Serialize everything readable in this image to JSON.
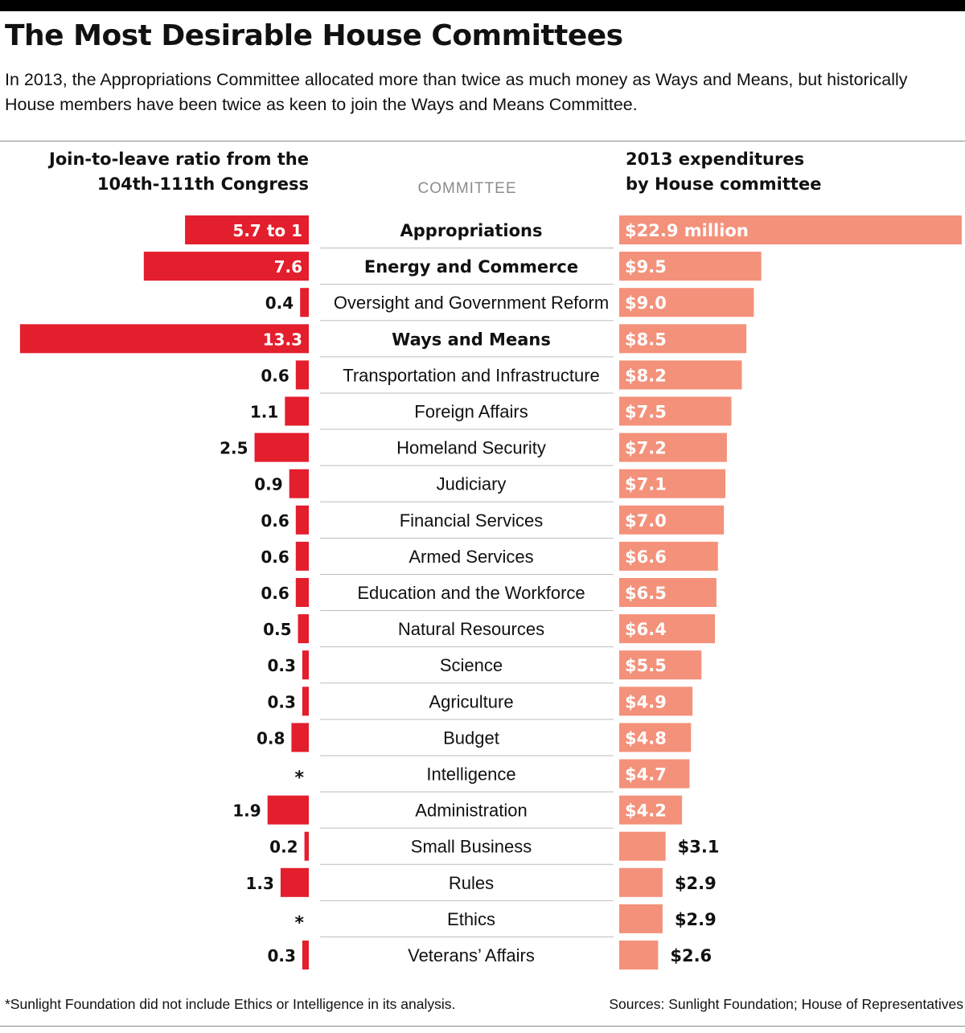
{
  "header": {
    "title": "The Most Desirable House Committees",
    "subtitle": "In 2013, the Appropriations Committee allocated more than twice as much money as Ways and Means, but historically House members have been twice as keen to join the Ways and Means Committee."
  },
  "columns": {
    "left_line1": "Join-to-leave ratio from the",
    "left_line2": "104th-111th Congress",
    "center": "COMMITTEE",
    "right_line1": "2013 expenditures",
    "right_line2": "by House committee"
  },
  "footer": {
    "note": "*Sunlight Foundation did not include Ethics or Intelligence in its analysis.",
    "sources": "Sources: Sunlight Foundation; House of Representatives"
  },
  "colors": {
    "ratio_bar": "#e31e2d",
    "spend_bar": "#f4917a",
    "divider": "#bdbdbd"
  },
  "chart_data": {
    "type": "bar",
    "categories": [
      "Appropriations",
      "Energy and Commerce",
      "Oversight and Government Reform",
      "Ways and Means",
      "Transportation and Infrastructure",
      "Foreign Affairs",
      "Homeland Security",
      "Judiciary",
      "Financial Services",
      "Armed Services",
      "Education and the Workforce",
      "Natural Resources",
      "Science",
      "Agriculture",
      "Budget",
      "Intelligence",
      "Administration",
      "Small Business",
      "Rules",
      "Ethics",
      "Veterans’ Affairs"
    ],
    "bold_categories": [
      "Appropriations",
      "Energy and Commerce",
      "Ways and Means"
    ],
    "series": [
      {
        "values": [
          5.7,
          7.6,
          0.4,
          13.3,
          0.6,
          1.1,
          2.5,
          0.9,
          0.6,
          0.6,
          0.6,
          0.5,
          0.3,
          0.3,
          0.8,
          null,
          1.9,
          0.2,
          1.3,
          null,
          0.3
        ],
        "labels": [
          "5.7 to 1",
          "7.6",
          "0.4",
          "13.3",
          "0.6",
          "1.1",
          "2.5",
          "0.9",
          "0.6",
          "0.6",
          "0.6",
          "0.5",
          "0.3",
          "0.3",
          "0.8",
          "*",
          "1.9",
          "0.2",
          "1.3",
          "*",
          "0.3"
        ]
      },
      {
        "values": [
          22.9,
          9.5,
          9.0,
          8.5,
          8.2,
          7.5,
          7.2,
          7.1,
          7.0,
          6.6,
          6.5,
          6.4,
          5.5,
          4.9,
          4.8,
          4.7,
          4.2,
          3.1,
          2.9,
          2.9,
          2.6
        ],
        "labels": [
          "$22.9 million",
          "$9.5",
          "$9.0",
          "$8.5",
          "$8.2",
          "$7.5",
          "$7.2",
          "$7.1",
          "$7.0",
          "$6.6",
          "$6.5",
          "$6.4",
          "$5.5",
          "$4.9",
          "$4.8",
          "$4.7",
          "$4.2",
          "$3.1",
          "$2.9",
          "$2.9",
          "$2.6"
        ]
      }
    ]
  }
}
